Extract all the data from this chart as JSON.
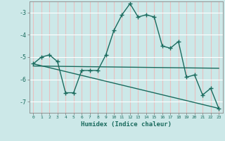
{
  "xlabel": "Humidex (Indice chaleur)",
  "bg_color": "#cce8e8",
  "grid_color": "#ffffff",
  "line_color": "#1a6b5e",
  "line1_x": [
    0,
    1,
    2,
    3,
    4,
    5,
    6,
    7,
    8,
    9,
    10,
    11,
    12,
    13,
    14,
    15,
    16,
    17,
    18,
    19,
    20,
    21,
    22,
    23
  ],
  "line1_y": [
    -5.3,
    -5.0,
    -4.9,
    -5.2,
    -6.6,
    -6.6,
    -5.6,
    -5.6,
    -5.6,
    -4.9,
    -3.8,
    -3.1,
    -2.6,
    -3.2,
    -3.1,
    -3.2,
    -4.5,
    -4.6,
    -4.3,
    -5.9,
    -5.8,
    -6.7,
    -6.4,
    -7.3
  ],
  "line2_x": [
    0,
    23
  ],
  "line2_y": [
    -5.4,
    -5.5
  ],
  "line3_x": [
    0,
    23
  ],
  "line3_y": [
    -5.3,
    -7.3
  ],
  "ylim": [
    -7.5,
    -2.5
  ],
  "xlim": [
    -0.5,
    23.5
  ],
  "xticks": [
    0,
    1,
    2,
    3,
    4,
    5,
    6,
    7,
    8,
    9,
    10,
    11,
    12,
    13,
    14,
    15,
    16,
    17,
    18,
    19,
    20,
    21,
    22,
    23
  ],
  "yticks": [
    -7,
    -6,
    -5,
    -4,
    -3
  ],
  "marker": "+"
}
